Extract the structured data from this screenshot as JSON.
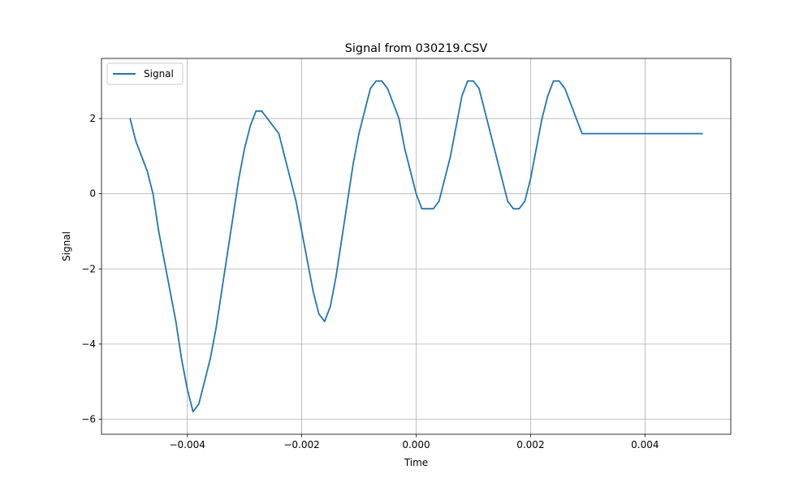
{
  "chart_data": {
    "type": "line",
    "title": "Signal from 030219.CSV",
    "xlabel": "Time",
    "ylabel": "Signal",
    "xlim": [
      -0.0055,
      0.0055
    ],
    "ylim": [
      -6.4,
      3.6
    ],
    "x_ticks": [
      {
        "value": -0.004,
        "label": "−0.004"
      },
      {
        "value": -0.002,
        "label": "−0.002"
      },
      {
        "value": 0.0,
        "label": "0.000"
      },
      {
        "value": 0.002,
        "label": "0.002"
      },
      {
        "value": 0.004,
        "label": "0.004"
      }
    ],
    "y_ticks": [
      {
        "value": -6,
        "label": "−6"
      },
      {
        "value": -4,
        "label": "−4"
      },
      {
        "value": -2,
        "label": "−2"
      },
      {
        "value": 0,
        "label": "0"
      },
      {
        "value": 2,
        "label": "2"
      }
    ],
    "grid": true,
    "legend_position": "top-left",
    "series": [
      {
        "name": "Signal",
        "color": "#1f77b4",
        "x": [
          -0.005,
          -0.0049,
          -0.0048,
          -0.0047,
          -0.0046,
          -0.0045,
          -0.0044,
          -0.0043,
          -0.0042,
          -0.0041,
          -0.004,
          -0.0039,
          -0.0038,
          -0.0037,
          -0.0036,
          -0.0035,
          -0.0034,
          -0.0033,
          -0.0032,
          -0.0031,
          -0.003,
          -0.0029,
          -0.0028,
          -0.0027,
          -0.0026,
          -0.0025,
          -0.0024,
          -0.0023,
          -0.0022,
          -0.0021,
          -0.002,
          -0.0019,
          -0.0018,
          -0.0017,
          -0.0016,
          -0.0015,
          -0.0014,
          -0.0013,
          -0.0012,
          -0.0011,
          -0.001,
          -0.0009,
          -0.0008,
          -0.0007,
          -0.0006,
          -0.0005,
          -0.0004,
          -0.0003,
          -0.0002,
          -0.0001,
          0.0,
          0.0001,
          0.0002,
          0.0003,
          0.0004,
          0.0005,
          0.0006,
          0.0007,
          0.0008,
          0.0009,
          0.001,
          0.0011,
          0.0012,
          0.0013,
          0.0014,
          0.0015,
          0.0016,
          0.0017,
          0.0018,
          0.0019,
          0.002,
          0.0021,
          0.0022,
          0.0023,
          0.0024,
          0.0025,
          0.0026,
          0.0027,
          0.0028,
          0.0029,
          0.003,
          0.0031,
          0.0032,
          0.0033,
          0.0034,
          0.0035,
          0.0036,
          0.0037,
          0.0038,
          0.0039,
          0.004,
          0.0041,
          0.0042,
          0.0043,
          0.0044,
          0.0045,
          0.0046,
          0.0047,
          0.0048,
          0.0049,
          0.005
        ],
        "y": [
          2.0,
          1.4,
          1.0,
          0.6,
          0.0,
          -1.0,
          -1.8,
          -2.6,
          -3.4,
          -4.4,
          -5.2,
          -5.8,
          -5.6,
          -5.0,
          -4.4,
          -3.6,
          -2.6,
          -1.6,
          -0.6,
          0.4,
          1.2,
          1.8,
          2.2,
          2.2,
          2.0,
          1.8,
          1.6,
          1.0,
          0.4,
          -0.2,
          -1.0,
          -1.8,
          -2.6,
          -3.2,
          -3.4,
          -3.0,
          -2.2,
          -1.2,
          -0.2,
          0.8,
          1.6,
          2.2,
          2.8,
          3.0,
          3.0,
          2.8,
          2.4,
          2.0,
          1.2,
          0.6,
          0.0,
          -0.4,
          -0.4,
          -0.4,
          -0.2,
          0.4,
          1.0,
          1.8,
          2.6,
          3.0,
          3.0,
          2.8,
          2.2,
          1.6,
          1.0,
          0.4,
          -0.2,
          -0.4,
          -0.4,
          -0.2,
          0.4,
          1.2,
          2.0,
          2.6,
          3.0,
          3.0,
          2.8,
          2.4,
          2.0,
          1.6,
          1.6,
          1.6,
          1.6,
          1.6,
          1.6,
          1.6,
          1.6,
          1.6,
          1.6,
          1.6,
          1.6,
          1.6,
          1.6,
          1.6,
          1.6,
          1.6,
          1.6,
          1.6,
          1.6,
          1.6,
          1.6
        ]
      }
    ]
  }
}
